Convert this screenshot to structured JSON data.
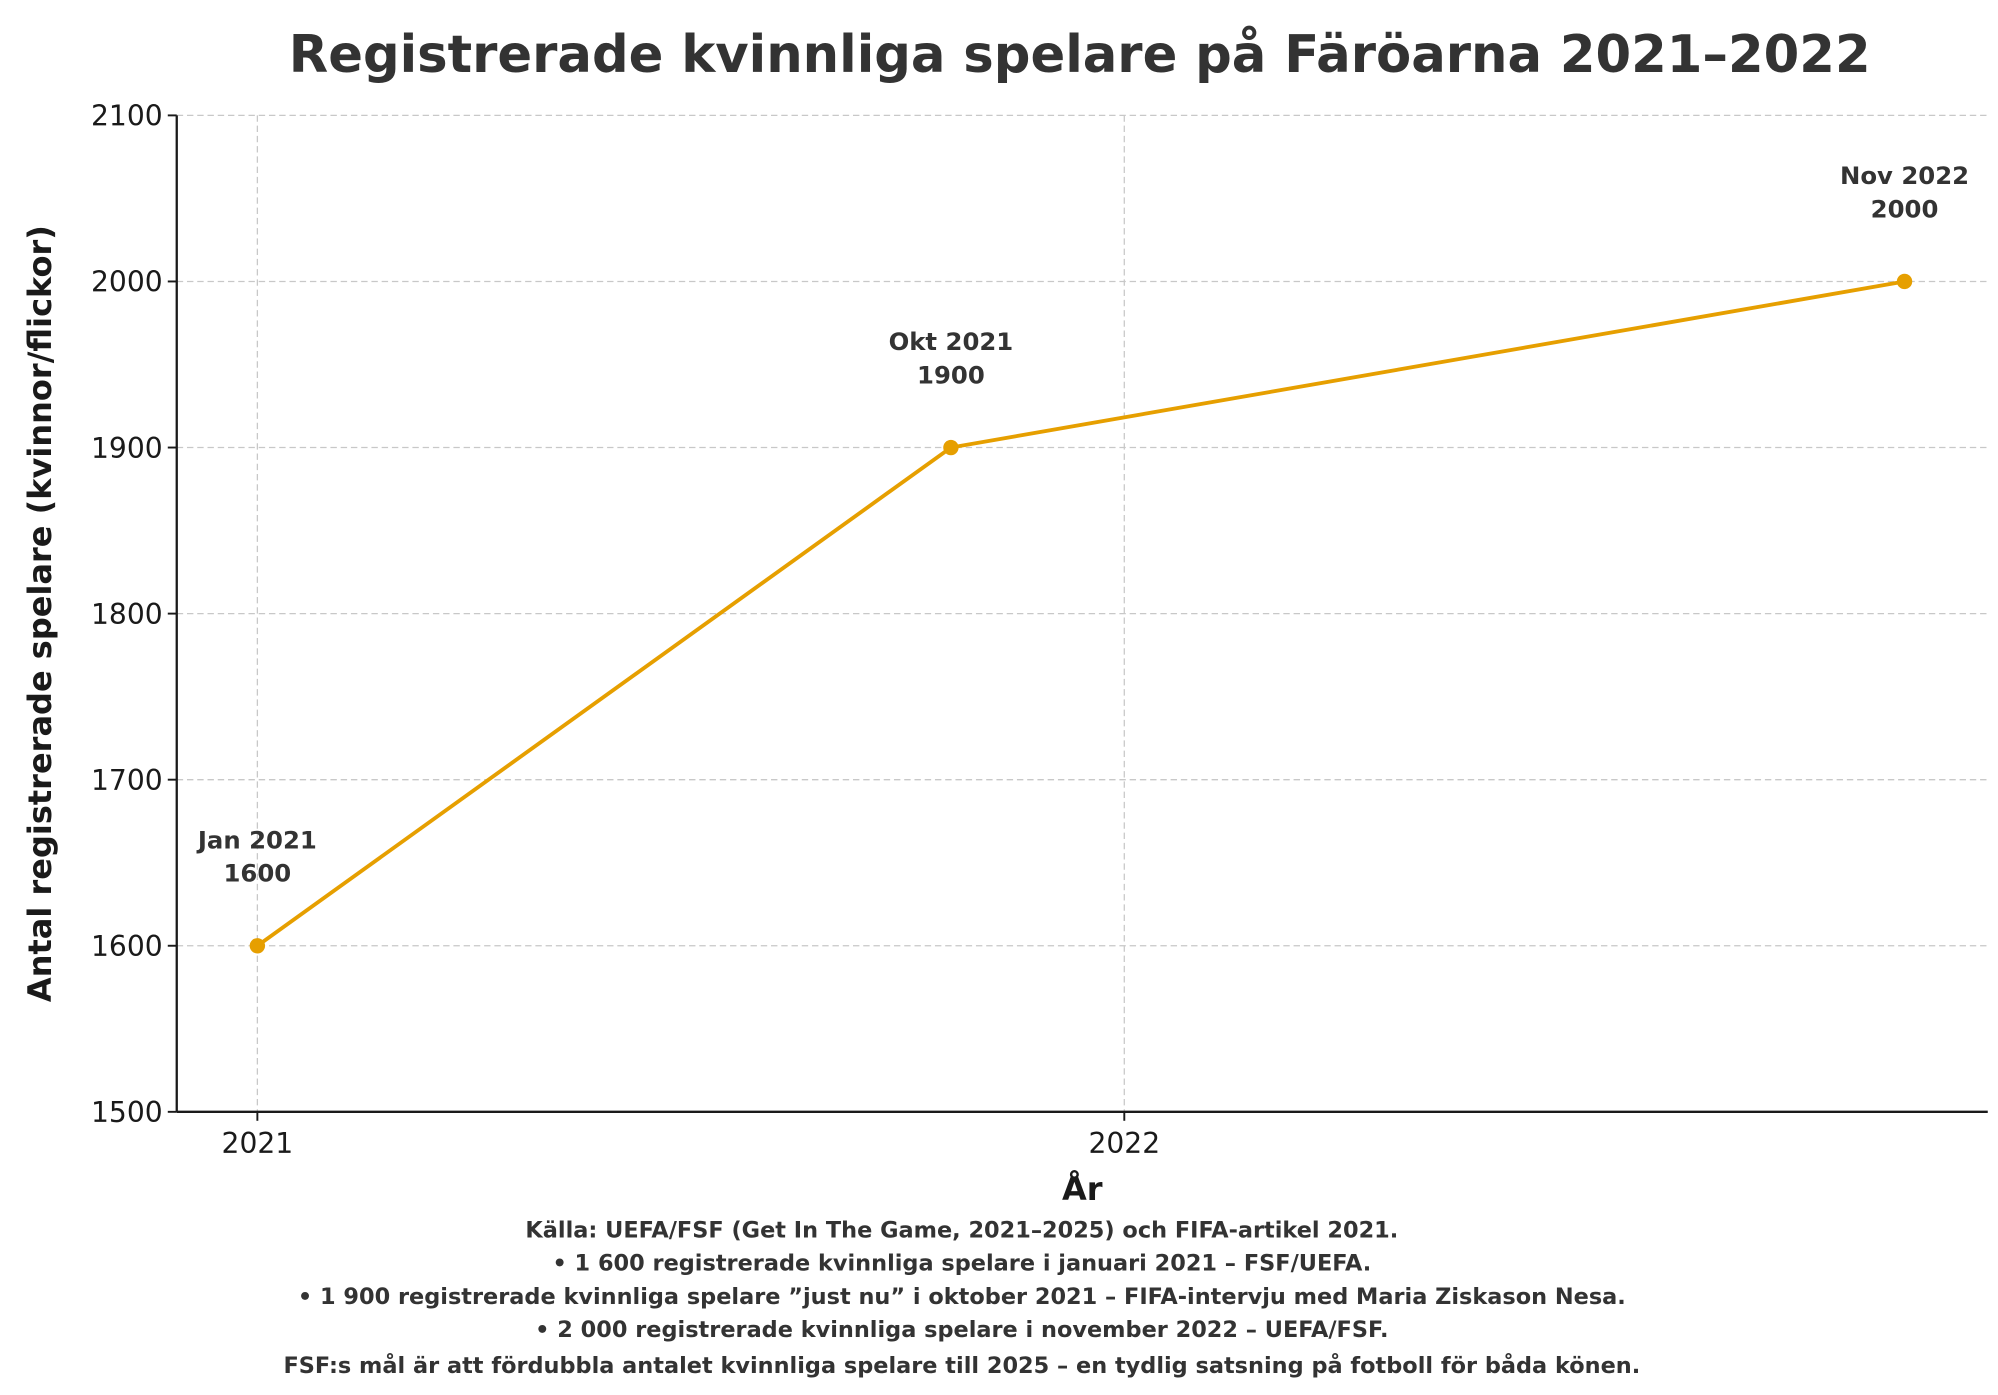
{
  "chart_data": {
    "type": "line",
    "title": "Registrerade kvinnliga spelare på Färöarna 2021–2022",
    "xlabel": "År",
    "ylabel": "Antal registrerade spelare (kvinnor/flickor)",
    "xlim": [
      2020.907,
      2022.996
    ],
    "ylim": [
      1500,
      2100
    ],
    "xticks": [
      {
        "value": 2021,
        "label": "2021"
      },
      {
        "value": 2022,
        "label": "2022"
      }
    ],
    "yticks": [
      {
        "value": 1500,
        "label": "1500"
      },
      {
        "value": 1600,
        "label": "1600"
      },
      {
        "value": 1700,
        "label": "1700"
      },
      {
        "value": 1800,
        "label": "1800"
      },
      {
        "value": 1900,
        "label": "1900"
      },
      {
        "value": 2000,
        "label": "2000"
      },
      {
        "value": 2100,
        "label": "2100"
      }
    ],
    "grid": true,
    "series": [
      {
        "name": "Registrerade kvinnliga spelare",
        "color": "#E69F00",
        "points": [
          {
            "x": 2021.0,
            "y": 1600,
            "label": "Jan 2021",
            "value_label": "1600"
          },
          {
            "x": 2021.8,
            "y": 1900,
            "label": "Okt 2021",
            "value_label": "1900"
          },
          {
            "x": 2022.9,
            "y": 2000,
            "label": "Nov 2022",
            "value_label": "2000"
          }
        ]
      }
    ],
    "footnote": [
      "Källa: UEFA/FSF (Get In The Game, 2021–2025) och FIFA-artikel 2021.",
      "• 1 600 registrerade kvinnliga spelare i januari 2021  – FSF/UEFA.",
      "• 1 900 registrerade kvinnliga spelare ”just nu” i oktober 2021  – FIFA-intervju med Maria Ziskason Nesa.",
      "• 2 000 registrerade kvinnliga spelare i november 2022  – UEFA/FSF.",
      "FSF:s mål är att fördubbla antalet kvinnliga spelare till 2025 – en tydlig satsning på fotboll för båda könen."
    ]
  }
}
